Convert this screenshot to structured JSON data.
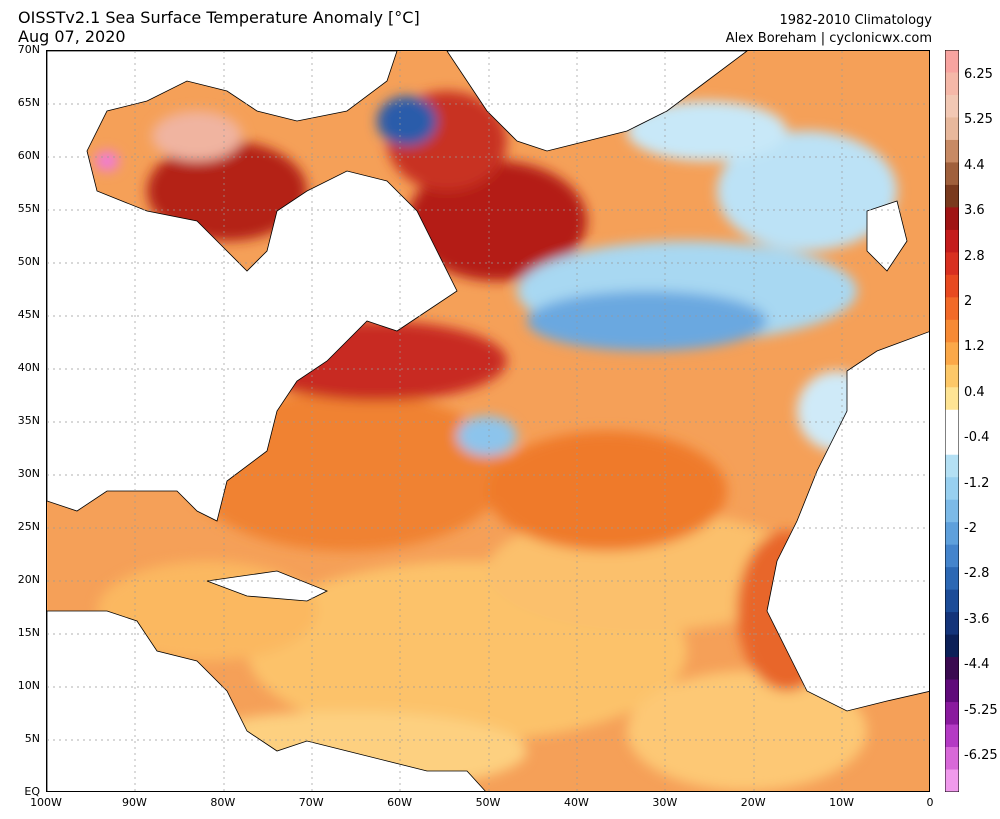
{
  "title": {
    "main": "OISSTv2.1 Sea Surface Temperature Anomaly [°C]",
    "date": "Aug 07, 2020",
    "climatology": "1982-2010 Climatology",
    "credit": "Alex Boreham | cyclonicwx.com"
  },
  "lat_labels": [
    "70N",
    "65N",
    "60N",
    "55N",
    "50N",
    "45N",
    "40N",
    "35N",
    "30N",
    "25N",
    "20N",
    "15N",
    "10N",
    "5N",
    "EQ"
  ],
  "lon_labels": [
    "100W",
    "90W",
    "80W",
    "70W",
    "60W",
    "50W",
    "40W",
    "30W",
    "20W",
    "10W",
    "0"
  ],
  "colorbar": {
    "labels": [
      "6.25",
      "5.25",
      "4.4",
      "3.6",
      "2.8",
      "2",
      "1.2",
      "0.4",
      "-0.4",
      "-1.2",
      "-2",
      "-2.8",
      "-3.6",
      "-4.4",
      "-5.25",
      "-6.25"
    ],
    "colors": [
      "#f8a4a0",
      "#f5b8a8",
      "#f2c8b4",
      "#e8b89c",
      "#c88a64",
      "#a0603c",
      "#7a3a1e",
      "#a01414",
      "#c41c1c",
      "#d83020",
      "#e84a20",
      "#f26a28",
      "#f78a34",
      "#fba848",
      "#fdc868",
      "#fee494",
      "#ffffff",
      "#ffffff",
      "#b4e0f4",
      "#98d0f0",
      "#7cbae8",
      "#5ea0dc",
      "#4484cc",
      "#2c68b4",
      "#1c4c98",
      "#14347a",
      "#0c2058",
      "#3a0a50",
      "#600a7a",
      "#8a1a9e",
      "#b43ac4",
      "#d868d8",
      "#f09aec"
    ]
  },
  "legend_symbols": {
    "land": "#ffffff"
  }
}
